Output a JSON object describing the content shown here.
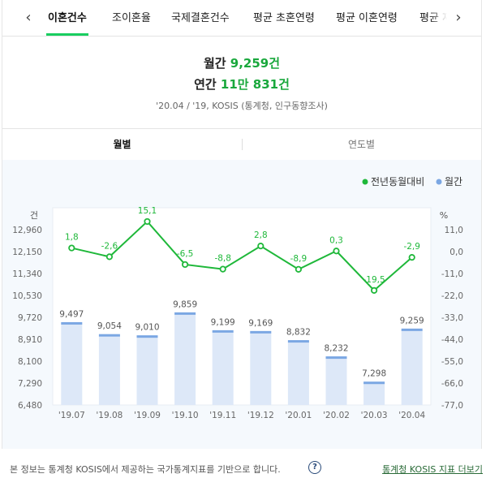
{
  "tabs": {
    "prev_icon": "chevron-left-icon",
    "next_icon": "chevron-right-icon",
    "items": [
      "이혼건수",
      "조이혼율",
      "국제결혼건수",
      "평균 초혼연령",
      "평균 이혼연령",
      "평균 재"
    ],
    "active_index": 0,
    "accent_color": "#19ce60"
  },
  "summary": {
    "monthly_label": "월간",
    "monthly_value": "9,259건",
    "yearly_label": "연간",
    "yearly_value": "11만 831건",
    "source": "'20.04 / '19, KOSIS (통계청, 인구동향조사)"
  },
  "subtabs": {
    "items": [
      "월별",
      "연도별"
    ],
    "active_index": 0
  },
  "chart_data": {
    "type": "bar",
    "legend_position": "top-right",
    "categories": [
      "'19.07",
      "'19.08",
      "'19.09",
      "'19.10",
      "'19.11",
      "'19.12",
      "'20.01",
      "'20.02",
      "'20.03",
      "'20.04"
    ],
    "series": [
      {
        "name": "월간",
        "type": "bar",
        "axis": "left",
        "color": "#7ba7e3",
        "values": [
          9497,
          9054,
          9010,
          9859,
          9199,
          9169,
          8832,
          8232,
          7298,
          9259
        ],
        "labels": [
          "9,497",
          "9,054",
          "9,010",
          "9,859",
          "9,199",
          "9,169",
          "8,832",
          "8,232",
          "7,298",
          "9,259"
        ]
      },
      {
        "name": "전년동월대비",
        "type": "line",
        "axis": "right",
        "color": "#1fb83a",
        "values": [
          1.8,
          -2.6,
          15.1,
          -6.5,
          -8.8,
          2.8,
          -8.9,
          0.3,
          -19.5,
          -2.9
        ],
        "labels": [
          "1,8",
          "-2,6",
          "15,1",
          "-6,5",
          "-8,8",
          "2,8",
          "-8,9",
          "0,3",
          "-19,5",
          "-2,9"
        ]
      }
    ],
    "y_left": {
      "unit": "건",
      "ylim": [
        6480,
        13770
      ],
      "ticks": [
        6480,
        7290,
        8100,
        8910,
        9720,
        10530,
        11340,
        12150,
        12960
      ],
      "tick_labels": [
        "6,480",
        "7,290",
        "8,100",
        "8,910",
        "9,720",
        "10,530",
        "11,340",
        "12,150",
        "12,960"
      ]
    },
    "y_right": {
      "unit": "%",
      "ylim": [
        -77.0,
        22.0
      ],
      "ticks": [
        11.0,
        0.0,
        -11.0,
        -22.0,
        -33.0,
        -44.0,
        -55.0,
        -66.0,
        -77.0
      ],
      "tick_labels": [
        "11,0",
        "0,0",
        "-11,0",
        "-22,0",
        "-33,0",
        "-44,0",
        "-55,0",
        "-66,0",
        "-77,0"
      ]
    },
    "legend": [
      {
        "name": "전년동월대비",
        "color": "#1fb83a"
      },
      {
        "name": "월간",
        "color": "#7ba7e3"
      }
    ]
  },
  "footer": {
    "note": "본 정보는 통계청 KOSIS에서 제공하는 국가통계지표를 기반으로 합니다.",
    "help_icon": "question-circle-icon",
    "help_glyph": "?",
    "link": "통계청 KOSIS 지표 더보기"
  }
}
